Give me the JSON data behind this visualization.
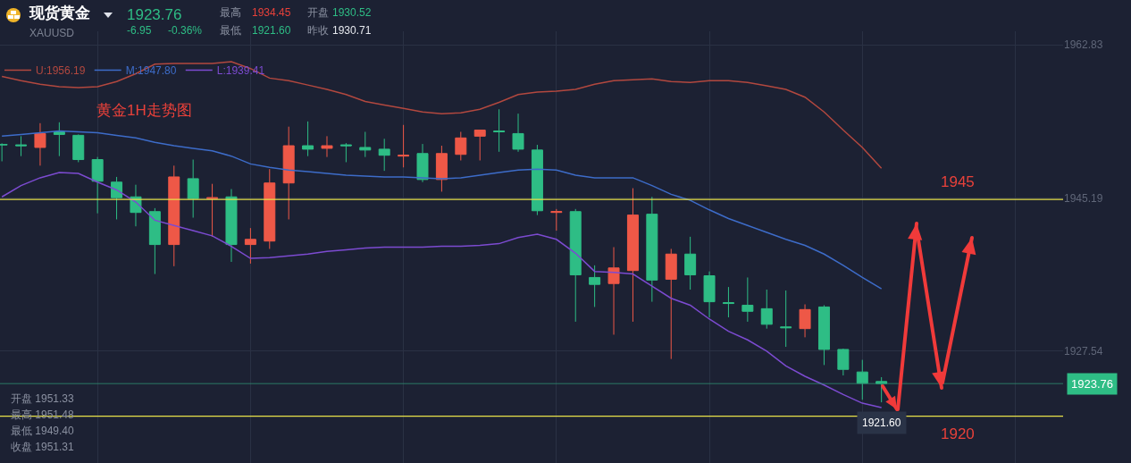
{
  "chart_data": {
    "type": "candlestick",
    "title": "现货黄金",
    "subtitle": "XAUUSD",
    "annotations": [
      "1923.76",
      "-6.95",
      "-0.36%",
      "最高",
      "1934.45",
      "开盘",
      "1930.52",
      "最低",
      "1921.60",
      "昨收",
      "1930.71",
      "黄金1H走势图",
      "开盘 1951.33",
      "最高 1951.48",
      "最低 1949.40",
      "收盘 1951.31",
      {
        "text": "1921.60",
        "y": 1921.6
      }
    ],
    "categories": [
      null,
      null,
      null,
      null,
      null,
      null,
      null,
      null,
      null,
      null,
      null,
      null,
      null,
      null,
      null,
      null,
      null,
      null,
      null,
      null,
      null,
      null,
      null,
      null,
      null,
      null,
      null,
      null,
      null,
      null,
      null,
      null,
      null,
      null,
      null,
      null,
      null,
      null,
      null,
      null,
      null,
      null,
      null,
      null,
      null,
      null,
      null
    ],
    "ohlc": [
      [
        1951.33,
        1951.48,
        1949.4,
        1951.31
      ],
      [
        1951.3,
        1952.3,
        1950.0,
        1951.2
      ],
      [
        1951.0,
        1953.8,
        1948.9,
        1952.6
      ],
      [
        1952.8,
        1953.9,
        1950.0,
        1952.5
      ],
      [
        1952.4,
        1952.5,
        1949.3,
        1949.6
      ],
      [
        1949.6,
        1949.9,
        1943.4,
        1947.1
      ],
      [
        1947.0,
        1947.6,
        1942.7,
        1945.2
      ],
      [
        1945.3,
        1946.7,
        1941.9,
        1943.5
      ],
      [
        1943.6,
        1944.0,
        1936.4,
        1939.8
      ],
      [
        1939.8,
        1948.9,
        1937.3,
        1947.6
      ],
      [
        1947.4,
        1949.6,
        1942.9,
        1945.1
      ],
      [
        1945.1,
        1946.8,
        1940.7,
        1945.2
      ],
      [
        1945.3,
        1946.2,
        1937.8,
        1939.8
      ],
      [
        1939.8,
        1941.7,
        1937.6,
        1940.4
      ],
      [
        1940.2,
        1948.5,
        1939.3,
        1946.9
      ],
      [
        1946.9,
        1953.4,
        1942.7,
        1951.2
      ],
      [
        1951.2,
        1954.0,
        1950.0,
        1950.8
      ],
      [
        1950.9,
        1952.3,
        1949.9,
        1951.2
      ],
      [
        1951.3,
        1951.5,
        1949.3,
        1951.2
      ],
      [
        1951.0,
        1952.8,
        1949.9,
        1950.7
      ],
      [
        1950.8,
        1952.0,
        1948.3,
        1950.1
      ],
      [
        1950.0,
        1953.6,
        1948.7,
        1950.1
      ],
      [
        1950.3,
        1951.4,
        1947.0,
        1947.3
      ],
      [
        1947.3,
        1951.2,
        1945.9,
        1950.3
      ],
      [
        1950.2,
        1952.8,
        1949.5,
        1952.1
      ],
      [
        1952.3,
        1953.0,
        1949.5,
        1953.0
      ],
      [
        1952.9,
        1955.4,
        1950.5,
        1952.8
      ],
      [
        1952.6,
        1954.9,
        1950.5,
        1950.8
      ],
      [
        1950.7,
        1951.3,
        1943.2,
        1943.7
      ],
      [
        1943.5,
        1943.9,
        1941.4,
        1943.6
      ],
      [
        1943.6,
        1943.9,
        1930.9,
        1936.3
      ],
      [
        1936.0,
        1937.4,
        1932.6,
        1935.2
      ],
      [
        1935.3,
        1939.5,
        1929.4,
        1937.1
      ],
      [
        1936.8,
        1946.3,
        1930.9,
        1943.2
      ],
      [
        1943.3,
        1945.3,
        1933.2,
        1935.7
      ],
      [
        1935.8,
        1939.3,
        1926.6,
        1938.7
      ],
      [
        1938.7,
        1940.7,
        1934.6,
        1936.3
      ],
      [
        1936.2,
        1936.7,
        1931.4,
        1933.2
      ],
      [
        1933.1,
        1934.9,
        1931.4,
        1933.0
      ],
      [
        1932.8,
        1936.0,
        1930.9,
        1932.1
      ],
      [
        1932.4,
        1934.6,
        1930.1,
        1930.6
      ],
      [
        1930.3,
        1934.5,
        1928.0,
        1930.2
      ],
      [
        1930.1,
        1932.9,
        1929.1,
        1932.3
      ],
      [
        1932.6,
        1932.8,
        1925.9,
        1927.7
      ],
      [
        1927.7,
        1927.8,
        1924.7,
        1925.4
      ],
      [
        1925.1,
        1926.5,
        1921.9,
        1923.8
      ],
      [
        1924.0,
        1924.5,
        1921.6,
        1923.76
      ]
    ],
    "colors": [
      "#2ebd85",
      "#2ebd85",
      "#ee5847",
      "#2ebd85",
      "#2ebd85",
      "#2ebd85",
      "#2ebd85",
      "#2ebd85",
      "#2ebd85",
      "#ee5847",
      "#2ebd85",
      "#ee5847",
      "#2ebd85",
      "#ee5847",
      "#ee5847",
      "#ee5847",
      "#2ebd85",
      "#ee5847",
      "#2ebd85",
      "#2ebd85",
      "#2ebd85",
      "#ee5847",
      "#2ebd85",
      "#ee5847",
      "#ee5847",
      "#ee5847",
      "#2ebd85",
      "#2ebd85",
      "#2ebd85",
      "#ee5847",
      "#2ebd85",
      "#2ebd85",
      "#ee5847",
      "#ee5847",
      "#2ebd85",
      "#ee5847",
      "#2ebd85",
      "#2ebd85",
      "#2ebd85",
      "#2ebd85",
      "#2ebd85",
      "#2ebd85",
      "#ee5847",
      "#2ebd85",
      "#2ebd85",
      "#2ebd85",
      "#2ebd85"
    ],
    "series": [
      {
        "name": "U:1956.19",
        "type": "line",
        "color": "#b2483f",
        "values": [
          1959.2,
          1958.7,
          1958.3,
          1958.0,
          1957.9,
          1958.0,
          1958.6,
          1959.5,
          1960.6,
          1960.7,
          1960.7,
          1960.7,
          1960.9,
          1960.1,
          1959.0,
          1958.7,
          1958.2,
          1957.7,
          1957.1,
          1956.3,
          1955.9,
          1955.5,
          1955.1,
          1954.9,
          1955.0,
          1955.4,
          1956.2,
          1957.1,
          1957.4,
          1957.5,
          1957.7,
          1958.3,
          1958.7,
          1958.8,
          1958.9,
          1958.6,
          1958.5,
          1958.7,
          1958.7,
          1958.5,
          1958.1,
          1957.7,
          1956.8,
          1955.1,
          1953.0,
          1951.0,
          1948.6
        ]
      },
      {
        "name": "M:1947.80",
        "type": "line",
        "color": "#3d6cc9",
        "values": [
          1952.3,
          1952.5,
          1952.7,
          1952.9,
          1952.8,
          1952.7,
          1952.4,
          1952.1,
          1951.6,
          1951.2,
          1950.9,
          1950.6,
          1950.0,
          1949.1,
          1948.7,
          1948.4,
          1948.2,
          1948.0,
          1947.8,
          1947.7,
          1947.6,
          1947.6,
          1947.5,
          1947.4,
          1947.5,
          1947.8,
          1948.1,
          1948.4,
          1948.5,
          1948.4,
          1947.8,
          1947.5,
          1947.5,
          1947.5,
          1946.6,
          1945.6,
          1944.9,
          1943.8,
          1942.8,
          1942.0,
          1941.2,
          1940.4,
          1939.7,
          1938.7,
          1937.4,
          1936.0,
          1934.7
        ]
      },
      {
        "name": "L:1939.41",
        "type": "line",
        "color": "#7c4bd1",
        "values": [
          1945.3,
          1946.6,
          1947.5,
          1948.1,
          1948.0,
          1947.0,
          1946.1,
          1944.7,
          1942.6,
          1942.0,
          1941.4,
          1940.8,
          1939.6,
          1938.2,
          1938.3,
          1938.5,
          1938.7,
          1939.0,
          1939.2,
          1939.4,
          1939.5,
          1939.5,
          1939.5,
          1939.6,
          1939.6,
          1939.7,
          1939.9,
          1940.6,
          1941.0,
          1940.4,
          1938.8,
          1936.7,
          1936.6,
          1936.4,
          1935.0,
          1933.6,
          1932.8,
          1931.2,
          1929.8,
          1928.8,
          1927.5,
          1925.8,
          1924.6,
          1923.6,
          1922.5,
          1921.5,
          1921.0
        ]
      }
    ],
    "ylim": [
      1914.6,
      1964.4
    ],
    "yticks": [
      1927.54,
      1945.19,
      1962.83
    ],
    "grid": true,
    "legend": "top left",
    "ref_lines": [
      {
        "axis": "y",
        "value": 1945,
        "label": "1945",
        "color": "#e8e24a"
      },
      {
        "axis": "y",
        "value": 1920,
        "label": "1920",
        "color": "#e8e24a"
      },
      {
        "axis": "y",
        "value": 1923.76,
        "label": "1923.76",
        "color": "#2f8f74"
      }
    ]
  }
}
